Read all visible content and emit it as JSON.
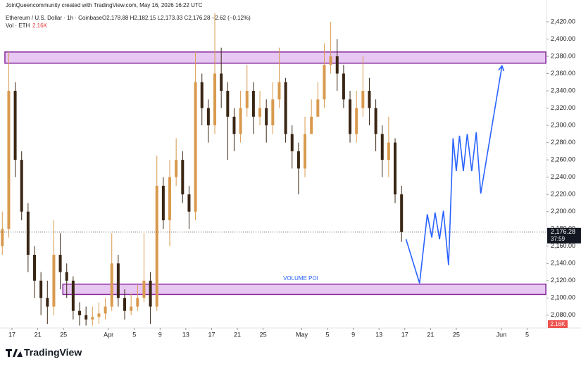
{
  "chart_data": {
    "type": "candlestick",
    "credit": "JoinQueencommunity created with TradingView.com, May 16, 2026 16:22 UTC",
    "symbol": "Ethereum / U.S. Dollar · 1h · Coinbase",
    "ohlc_label": "O2,178.88 H2,182.15 L2,173.33 C2,176.28 −2.62 (−0.12%)",
    "volume_label": "Vol · ETH",
    "volume_value": "2.16K",
    "brand": "TradingView",
    "up_color": "#d99a4e",
    "down_color": "#3a2614",
    "x": [
      0.5,
      1.5,
      2.5,
      3.5,
      4.5,
      5.5,
      6.5,
      7.5,
      8.5,
      9.5,
      10.5,
      11.5,
      12.5,
      13.5,
      14.5,
      15.5,
      16.5,
      17.5,
      18.5,
      19.5,
      20.5,
      21.5,
      22.5,
      23.5,
      24.5,
      25.5,
      26.5,
      27.5,
      28.5,
      29.5,
      30.5,
      31.5,
      32.5,
      33.5,
      34.5,
      35.5,
      36.5,
      37.5,
      38.5,
      39.5,
      40.5,
      41.5,
      42.5,
      43.5,
      44.5,
      45.5,
      46.5,
      47.5,
      48.5,
      49.5,
      50.5,
      51.5,
      52.5,
      53.5,
      54.5,
      55.5,
      56.5,
      57.5,
      58.5,
      59.5,
      60.5,
      61.5,
      62.5
    ],
    "open": [
      2160,
      2180,
      2340,
      2260,
      2200,
      2150,
      2120,
      2100,
      2090,
      2150,
      2130,
      2120,
      2085,
      2080,
      2075,
      2078,
      2082,
      2090,
      2140,
      2100,
      2085,
      2090,
      2100,
      2120,
      2090,
      2230,
      2190,
      2240,
      2260,
      2220,
      2200,
      2350,
      2320,
      2300,
      2360,
      2340,
      2310,
      2290,
      2320,
      2340,
      2310,
      2320,
      2300,
      2330,
      2350,
      2290,
      2270,
      2250,
      2290,
      2310,
      2330,
      2370,
      2380,
      2360,
      2330,
      2290,
      2320,
      2340,
      2320,
      2290,
      2260,
      2280,
      2220
    ],
    "high": [
      2200,
      2385,
      2350,
      2270,
      2210,
      2160,
      2130,
      2120,
      2190,
      2175,
      2140,
      2125,
      2095,
      2090,
      2090,
      2095,
      2100,
      2175,
      2150,
      2110,
      2105,
      2115,
      2175,
      2130,
      2265,
      2240,
      2260,
      2285,
      2270,
      2230,
      2385,
      2360,
      2330,
      2430,
      2390,
      2350,
      2320,
      2340,
      2370,
      2350,
      2340,
      2330,
      2350,
      2390,
      2355,
      2300,
      2280,
      2310,
      2330,
      2350,
      2395,
      2420,
      2400,
      2370,
      2340,
      2340,
      2380,
      2355,
      2330,
      2300,
      2310,
      2285,
      2230
    ],
    "low": [
      2150,
      2170,
      2240,
      2190,
      2130,
      2100,
      2080,
      2070,
      2080,
      2110,
      2100,
      2075,
      2068,
      2068,
      2068,
      2070,
      2075,
      2085,
      2090,
      2075,
      2080,
      2085,
      2095,
      2070,
      2085,
      2180,
      2160,
      2230,
      2210,
      2180,
      2190,
      2300,
      2280,
      2290,
      2320,
      2260,
      2270,
      2280,
      2310,
      2290,
      2300,
      2280,
      2290,
      2320,
      2280,
      2250,
      2220,
      2240,
      2290,
      2310,
      2320,
      2360,
      2340,
      2320,
      2280,
      2280,
      2310,
      2300,
      2270,
      2240,
      2240,
      2210,
      2165
    ],
    "close": [
      2180,
      2340,
      2260,
      2200,
      2150,
      2120,
      2100,
      2090,
      2150,
      2130,
      2120,
      2085,
      2080,
      2075,
      2078,
      2082,
      2090,
      2140,
      2100,
      2085,
      2090,
      2100,
      2120,
      2090,
      2230,
      2190,
      2240,
      2260,
      2220,
      2200,
      2350,
      2320,
      2300,
      2360,
      2340,
      2310,
      2290,
      2320,
      2340,
      2310,
      2320,
      2300,
      2330,
      2350,
      2290,
      2270,
      2250,
      2290,
      2310,
      2330,
      2370,
      2380,
      2360,
      2330,
      2290,
      2320,
      2340,
      2320,
      2290,
      2260,
      2280,
      2220,
      2176.28
    ],
    "last_price": {
      "value": 2176.28,
      "label": "2,176.28"
    },
    "countdown": "37:59",
    "zones": [
      {
        "x": [
          0.9,
          84.9
        ],
        "y": [
          2372,
          2385
        ],
        "color": "#8a2b9e"
      },
      {
        "x": [
          9.9,
          84.9
        ],
        "y": [
          2104,
          2116
        ],
        "color": "#8a2b9e",
        "label": "VOLUME POI"
      }
    ],
    "projection": {
      "color": "#2962ff",
      "x": [
        63.2,
        65.3,
        66.5,
        67.2,
        67.7,
        68.4,
        69.0,
        69.8,
        70.5,
        71.0,
        71.5,
        72.1,
        72.7,
        73.4,
        74.1,
        74.8,
        78.1
      ],
      "y": [
        2168,
        2117,
        2197,
        2170,
        2199,
        2168,
        2201,
        2138,
        2285,
        2247,
        2288,
        2247,
        2290,
        2247,
        2292,
        2221,
        2369
      ]
    },
    "xlim": [
      0.14,
      84.9
    ],
    "ylim": [
      2066,
      2433
    ],
    "xticks": [
      {
        "value": 2,
        "label": "17"
      },
      {
        "value": 6,
        "label": "21"
      },
      {
        "value": 10,
        "label": "25"
      },
      {
        "value": 17,
        "label": "Apr"
      },
      {
        "value": 21,
        "label": "5"
      },
      {
        "value": 25,
        "label": "9"
      },
      {
        "value": 29,
        "label": "13"
      },
      {
        "value": 33,
        "label": "17"
      },
      {
        "value": 37,
        "label": "21"
      },
      {
        "value": 41,
        "label": "25"
      },
      {
        "value": 47,
        "label": "May"
      },
      {
        "value": 51,
        "label": "5"
      },
      {
        "value": 55,
        "label": "9"
      },
      {
        "value": 59,
        "label": "13"
      },
      {
        "value": 63,
        "label": "17"
      },
      {
        "value": 67,
        "label": "21"
      },
      {
        "value": 71,
        "label": "25"
      },
      {
        "value": 78,
        "label": "Jun"
      },
      {
        "value": 82,
        "label": "5"
      }
    ],
    "yticks": [
      {
        "value": 2080,
        "label": "2,080.00"
      },
      {
        "value": 2100,
        "label": "2,100.00"
      },
      {
        "value": 2120,
        "label": "2,120.00"
      },
      {
        "value": 2140,
        "label": "2,140.00"
      },
      {
        "value": 2160,
        "label": "2,160.00"
      },
      {
        "value": 2180,
        "label": "2,180.00"
      },
      {
        "value": 2200,
        "label": "2,200.00"
      },
      {
        "value": 2220,
        "label": "2,220.00"
      },
      {
        "value": 2240,
        "label": "2,240.00"
      },
      {
        "value": 2260,
        "label": "2,260.00"
      },
      {
        "value": 2280,
        "label": "2,280.00"
      },
      {
        "value": 2300,
        "label": "2,300.00"
      },
      {
        "value": 2320,
        "label": "2,320.00"
      },
      {
        "value": 2340,
        "label": "2,340.00"
      },
      {
        "value": 2360,
        "label": "2,360.00"
      },
      {
        "value": 2380,
        "label": "2,380.00"
      },
      {
        "value": 2400,
        "label": "2,400.00"
      },
      {
        "value": 2420,
        "label": "2,420.00"
      }
    ]
  }
}
